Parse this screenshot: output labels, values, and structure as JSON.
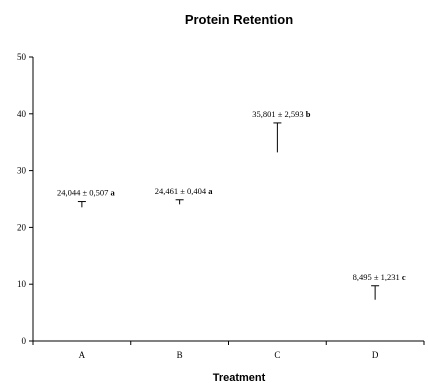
{
  "chart_data": {
    "type": "scatter",
    "title": "Protein Retention",
    "xlabel": "Treatment",
    "ylabel": "",
    "categories": [
      "A",
      "B",
      "C",
      "D"
    ],
    "ylim": [
      0,
      50
    ],
    "yticks": [
      0,
      10,
      20,
      30,
      40,
      50
    ],
    "ytick_labels": [
      "0",
      "10",
      "20",
      "30",
      "40",
      "50"
    ],
    "grid": false,
    "legend": "none",
    "series": [
      {
        "values": [
          24.044,
          24.461,
          35.801,
          8.495
        ],
        "errors": [
          0.507,
          0.404,
          2.593,
          1.231
        ]
      }
    ],
    "data_labels": [
      {
        "text": "24,044 ± 0,507",
        "letter": "a"
      },
      {
        "text": "24,461 ± 0,404",
        "letter": "a"
      },
      {
        "text": "35,801 ± 2,593",
        "letter": "b"
      },
      {
        "text": "8,495 ± 1,231",
        "letter": "c"
      }
    ]
  }
}
